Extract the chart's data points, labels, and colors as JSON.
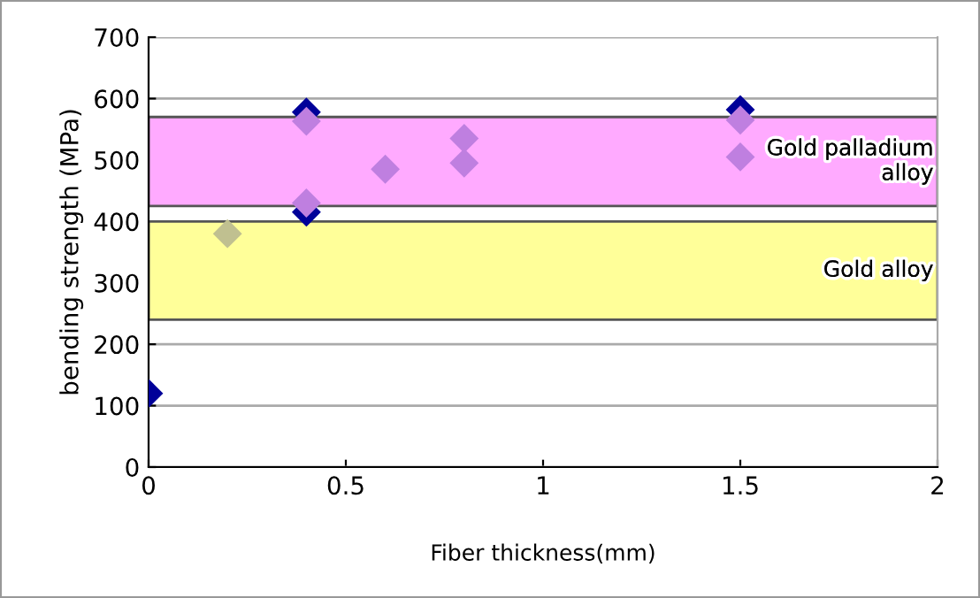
{
  "chart_data": {
    "type": "scatter",
    "xlabel": "Fiber thickness(mm)",
    "ylabel": "bending strength (MPa)",
    "xlim": [
      0,
      2
    ],
    "xticks": [
      0,
      0.5,
      1,
      1.5,
      2
    ],
    "ylim": [
      0,
      700
    ],
    "yticks": [
      0,
      100,
      200,
      300,
      400,
      500,
      600,
      700
    ],
    "grid": "y",
    "marker": "diamond",
    "legend": false,
    "bands": [
      {
        "axis": "y",
        "from": 425,
        "to": 570,
        "label": "Gold palladium\nalloy",
        "color": "#ffaaff"
      },
      {
        "axis": "y",
        "from": 240,
        "to": 400,
        "label": "Gold alloy",
        "color": "#ffff99"
      }
    ],
    "series": [
      {
        "color": "#000099",
        "x": [
          0,
          0.4,
          0.4,
          1.5
        ],
        "values": [
          120,
          578,
          415,
          582
        ]
      },
      {
        "color": "#bf7fe0",
        "x": [
          0.4,
          0.4,
          0.6,
          0.8,
          0.8,
          1.5,
          1.5
        ],
        "values": [
          563,
          430,
          485,
          535,
          495,
          565,
          505
        ]
      },
      {
        "color": "#c0c090",
        "x": [
          0.2
        ],
        "values": [
          380
        ]
      }
    ]
  }
}
